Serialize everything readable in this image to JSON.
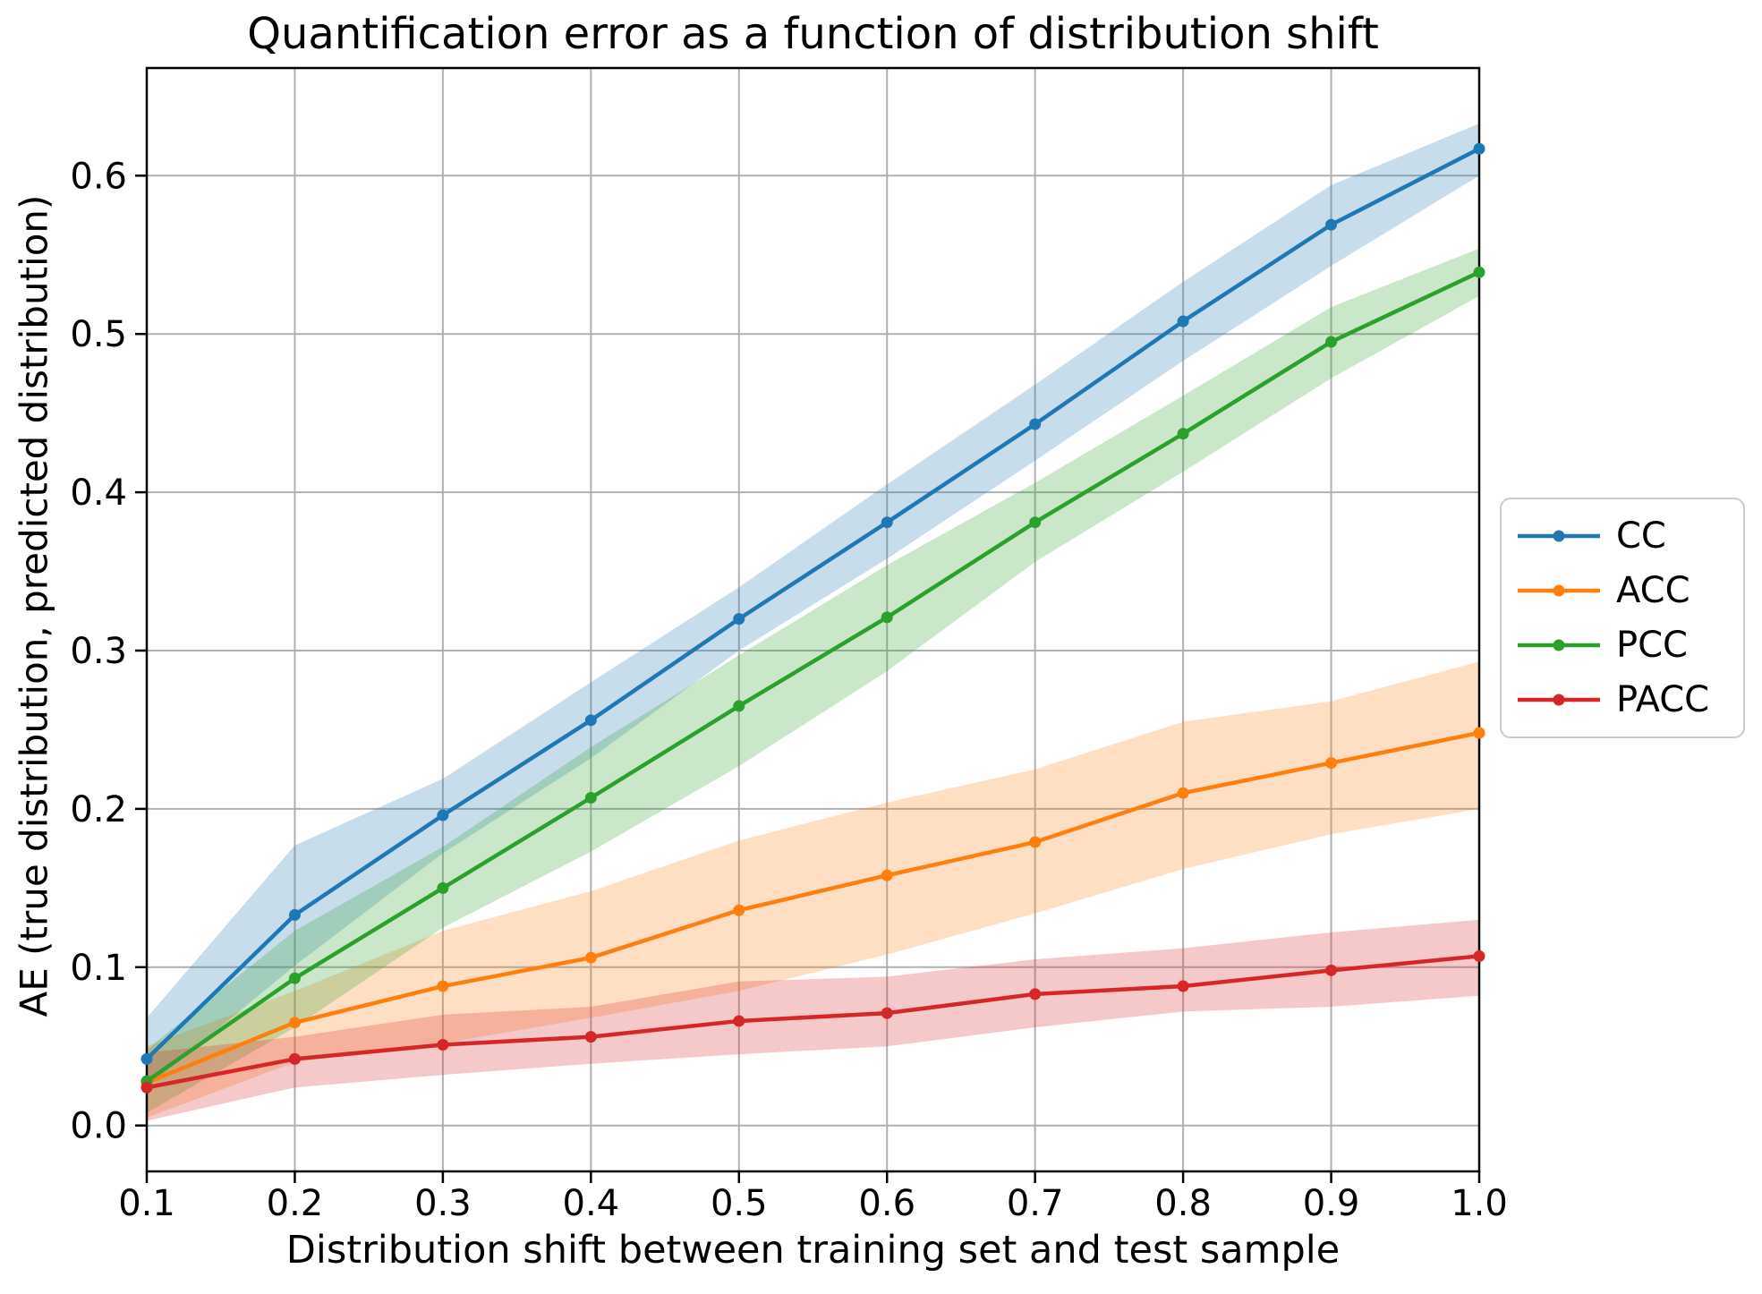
{
  "title": "Quantification error as a function of distribution shift",
  "xlabel": "Distribution shift between training set and test sample",
  "ylabel": "AE (true distribution, predicted distribution)",
  "legend": {
    "items": [
      "CC",
      "ACC",
      "PCC",
      "PACC"
    ]
  },
  "chart_data": {
    "type": "line",
    "x": [
      0.1,
      0.2,
      0.3,
      0.4,
      0.5,
      0.6,
      0.7,
      0.8,
      0.9,
      1.0
    ],
    "series": [
      {
        "name": "CC",
        "color": "#1f77b4",
        "values": [
          0.042,
          0.133,
          0.196,
          0.256,
          0.32,
          0.381,
          0.443,
          0.508,
          0.569,
          0.617
        ],
        "band_upper": [
          0.068,
          0.177,
          0.219,
          0.28,
          0.34,
          0.405,
          0.468,
          0.533,
          0.594,
          0.633
        ],
        "band_lower": [
          0.024,
          0.101,
          0.172,
          0.232,
          0.3,
          0.358,
          0.42,
          0.483,
          0.543,
          0.6
        ]
      },
      {
        "name": "ACC",
        "color": "#ff7f0e",
        "values": [
          0.027,
          0.065,
          0.088,
          0.106,
          0.136,
          0.158,
          0.179,
          0.21,
          0.229,
          0.248
        ],
        "band_upper": [
          0.05,
          0.085,
          0.123,
          0.148,
          0.18,
          0.204,
          0.225,
          0.255,
          0.268,
          0.293
        ],
        "band_lower": [
          0.005,
          0.04,
          0.052,
          0.068,
          0.085,
          0.108,
          0.134,
          0.162,
          0.184,
          0.2
        ]
      },
      {
        "name": "PCC",
        "color": "#2ca02c",
        "values": [
          0.028,
          0.093,
          0.15,
          0.207,
          0.265,
          0.321,
          0.381,
          0.437,
          0.495,
          0.539
        ],
        "band_upper": [
          0.048,
          0.123,
          0.176,
          0.239,
          0.297,
          0.354,
          0.406,
          0.461,
          0.517,
          0.554
        ],
        "band_lower": [
          0.008,
          0.062,
          0.125,
          0.173,
          0.227,
          0.287,
          0.356,
          0.413,
          0.472,
          0.524
        ]
      },
      {
        "name": "PACC",
        "color": "#d62728",
        "values": [
          0.024,
          0.042,
          0.051,
          0.056,
          0.066,
          0.071,
          0.083,
          0.088,
          0.098,
          0.107
        ],
        "band_upper": [
          0.046,
          0.056,
          0.07,
          0.075,
          0.091,
          0.094,
          0.105,
          0.112,
          0.122,
          0.13
        ],
        "band_lower": [
          0.003,
          0.024,
          0.032,
          0.039,
          0.045,
          0.05,
          0.062,
          0.072,
          0.075,
          0.082
        ]
      }
    ],
    "xticks": [
      0.1,
      0.2,
      0.3,
      0.4,
      0.5,
      0.6,
      0.7,
      0.8,
      0.9,
      1.0
    ],
    "xtick_labels": [
      "0.1",
      "0.2",
      "0.3",
      "0.4",
      "0.5",
      "0.6",
      "0.7",
      "0.8",
      "0.9",
      "1.0"
    ],
    "yticks": [
      0.0,
      0.1,
      0.2,
      0.3,
      0.4,
      0.5,
      0.6
    ],
    "ytick_labels": [
      "0.0",
      "0.1",
      "0.2",
      "0.3",
      "0.4",
      "0.5",
      "0.6"
    ],
    "xlim": [
      0.1,
      1.0
    ],
    "ylim": [
      -0.029,
      0.668
    ],
    "grid": true,
    "grid_color": "#b0b0b0",
    "legend_position": "outside-right",
    "band_opacity": 0.25
  }
}
